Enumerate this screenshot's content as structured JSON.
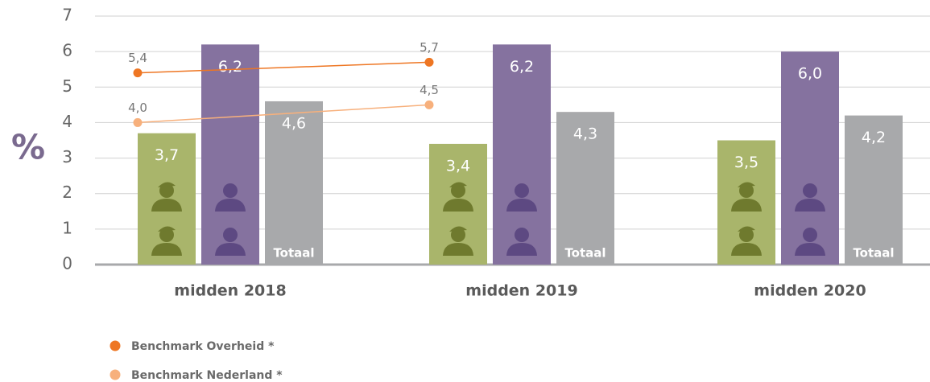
{
  "chart_data": {
    "type": "bar",
    "y_axis_label": "%",
    "categories": [
      "midden 2018",
      "midden 2019",
      "midden 2020"
    ],
    "ylim": [
      0,
      7
    ],
    "yticks": [
      0,
      1,
      2,
      3,
      4,
      5,
      6,
      7
    ],
    "grid": true,
    "legend_position": "bottom-left",
    "series": [
      {
        "color": "#a9b56b",
        "values": [
          3.7,
          3.4,
          3.5
        ],
        "value_labels": [
          "3,7",
          "3,4",
          "3,5"
        ]
      },
      {
        "color": "#85729f",
        "values": [
          6.2,
          6.2,
          6.0
        ],
        "value_labels": [
          "6,2",
          "6,2",
          "6,0"
        ]
      },
      {
        "name": "Totaal",
        "color": "#a8a9ab",
        "values": [
          4.6,
          4.3,
          4.2
        ],
        "value_labels": [
          "4,6",
          "4,3",
          "4,2"
        ]
      }
    ],
    "lines": [
      {
        "name": "Benchmark Overheid *",
        "color": "#ee7623",
        "values": [
          5.4,
          5.7,
          null
        ],
        "value_labels": [
          "5,4",
          "5,7",
          null
        ]
      },
      {
        "name": "Benchmark Nederland *",
        "color": "#f7b07c",
        "values": [
          4.0,
          4.5,
          null
        ],
        "value_labels": [
          "4,0",
          "4,5",
          null
        ]
      }
    ]
  }
}
